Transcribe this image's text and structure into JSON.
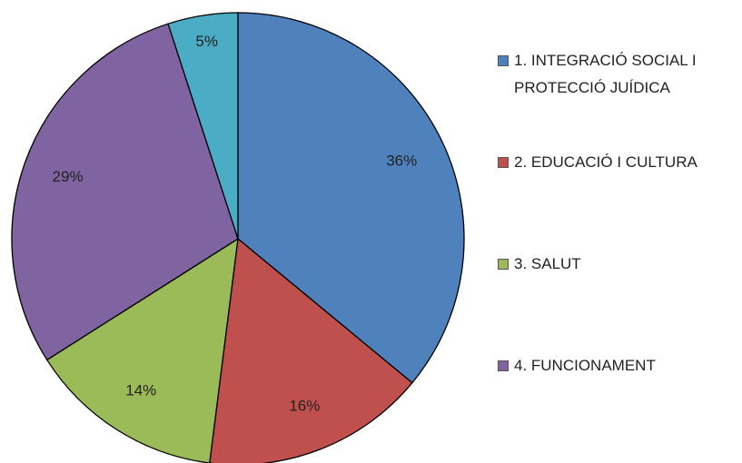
{
  "chart_data": {
    "type": "pie",
    "categories": [
      "1. INTEGRACIÓ SOCIAL I PROTECCIÓ JUÍDICA",
      "2. EDUCACIÓ I CULTURA",
      "3. SALUT",
      "4. FUNCIONAMENT",
      null
    ],
    "values": [
      36,
      16,
      14,
      29,
      5
    ],
    "value_labels": [
      "36%",
      "16%",
      "14%",
      "29%",
      "5%"
    ],
    "colors": [
      "#4f81bd",
      "#c0504d",
      "#9bbb59",
      "#8064a2",
      "#4bacc6"
    ],
    "legend": "right"
  }
}
